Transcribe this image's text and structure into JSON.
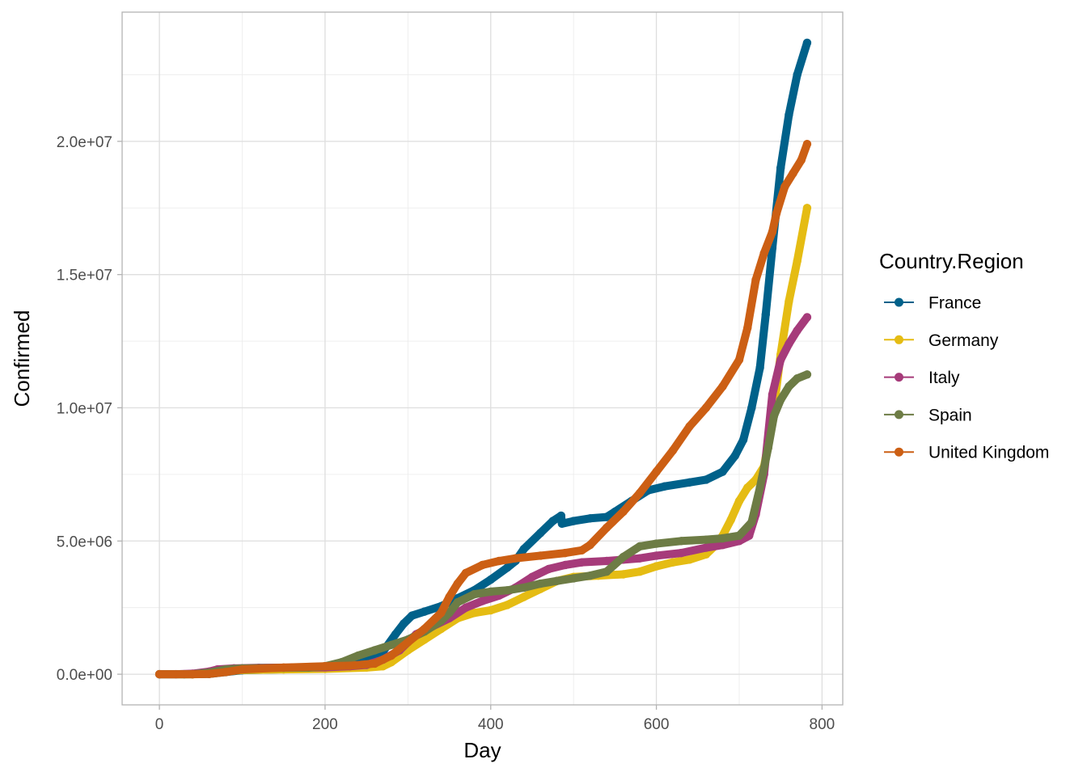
{
  "chart_data": {
    "type": "line",
    "xlabel": "Day",
    "ylabel": "Confirmed",
    "xlim": [
      -45,
      825
    ],
    "ylim": [
      -1150000,
      24850000
    ],
    "x_ticks": [
      0,
      200,
      400,
      600,
      800
    ],
    "x_tick_labels": [
      "0",
      "200",
      "400",
      "600",
      "800"
    ],
    "y_ticks": [
      0,
      5000000,
      10000000,
      15000000,
      20000000
    ],
    "y_tick_labels": [
      "0.0e+00",
      "5.0e+06",
      "1.0e+07",
      "1.5e+07",
      "2.0e+07"
    ],
    "grid": true,
    "legend_title": "Country.Region",
    "legend_position": "right",
    "series": [
      {
        "name": "France",
        "color": "#00618A",
        "points": [
          [
            0,
            0
          ],
          [
            30,
            0
          ],
          [
            60,
            10000
          ],
          [
            80,
            80000
          ],
          [
            100,
            150000
          ],
          [
            150,
            190000
          ],
          [
            200,
            250000
          ],
          [
            230,
            330000
          ],
          [
            250,
            500000
          ],
          [
            270,
            850000
          ],
          [
            285,
            1500000
          ],
          [
            295,
            1900000
          ],
          [
            305,
            2200000
          ],
          [
            320,
            2350000
          ],
          [
            340,
            2550000
          ],
          [
            360,
            2850000
          ],
          [
            380,
            3150000
          ],
          [
            400,
            3550000
          ],
          [
            420,
            4000000
          ],
          [
            430,
            4250000
          ],
          [
            440,
            4700000
          ],
          [
            460,
            5300000
          ],
          [
            475,
            5750000
          ],
          [
            485,
            5950000
          ],
          [
            486,
            5650000
          ],
          [
            500,
            5750000
          ],
          [
            520,
            5850000
          ],
          [
            540,
            5900000
          ],
          [
            550,
            6100000
          ],
          [
            570,
            6500000
          ],
          [
            590,
            6900000
          ],
          [
            610,
            7050000
          ],
          [
            640,
            7200000
          ],
          [
            660,
            7300000
          ],
          [
            680,
            7600000
          ],
          [
            695,
            8200000
          ],
          [
            705,
            8800000
          ],
          [
            715,
            10000000
          ],
          [
            725,
            11500000
          ],
          [
            732,
            13500000
          ],
          [
            740,
            16000000
          ],
          [
            750,
            19000000
          ],
          [
            760,
            21000000
          ],
          [
            770,
            22500000
          ],
          [
            782,
            23700000
          ]
        ]
      },
      {
        "name": "Germany",
        "color": "#E5BC13",
        "points": [
          [
            0,
            0
          ],
          [
            40,
            0
          ],
          [
            60,
            30000
          ],
          [
            80,
            100000
          ],
          [
            100,
            160000
          ],
          [
            150,
            180000
          ],
          [
            200,
            200000
          ],
          [
            250,
            250000
          ],
          [
            270,
            300000
          ],
          [
            280,
            450000
          ],
          [
            300,
            900000
          ],
          [
            320,
            1300000
          ],
          [
            340,
            1700000
          ],
          [
            360,
            2100000
          ],
          [
            380,
            2300000
          ],
          [
            400,
            2400000
          ],
          [
            420,
            2600000
          ],
          [
            440,
            2900000
          ],
          [
            460,
            3200000
          ],
          [
            480,
            3500000
          ],
          [
            500,
            3650000
          ],
          [
            530,
            3700000
          ],
          [
            560,
            3750000
          ],
          [
            580,
            3850000
          ],
          [
            600,
            4050000
          ],
          [
            620,
            4200000
          ],
          [
            640,
            4300000
          ],
          [
            660,
            4500000
          ],
          [
            670,
            4800000
          ],
          [
            680,
            5200000
          ],
          [
            690,
            5800000
          ],
          [
            700,
            6500000
          ],
          [
            710,
            7000000
          ],
          [
            720,
            7300000
          ],
          [
            730,
            7800000
          ],
          [
            740,
            9500000
          ],
          [
            750,
            12000000
          ],
          [
            760,
            14000000
          ],
          [
            770,
            15500000
          ],
          [
            782,
            17500000
          ]
        ]
      },
      {
        "name": "Italy",
        "color": "#A63B7A",
        "points": [
          [
            0,
            0
          ],
          [
            20,
            0
          ],
          [
            40,
            20000
          ],
          [
            60,
            100000
          ],
          [
            70,
            180000
          ],
          [
            90,
            220000
          ],
          [
            120,
            240000
          ],
          [
            160,
            250000
          ],
          [
            200,
            260000
          ],
          [
            230,
            300000
          ],
          [
            250,
            350000
          ],
          [
            270,
            550000
          ],
          [
            290,
            900000
          ],
          [
            310,
            1500000
          ],
          [
            330,
            1800000
          ],
          [
            350,
            2100000
          ],
          [
            370,
            2500000
          ],
          [
            390,
            2750000
          ],
          [
            410,
            2950000
          ],
          [
            430,
            3250000
          ],
          [
            450,
            3650000
          ],
          [
            470,
            3950000
          ],
          [
            490,
            4100000
          ],
          [
            510,
            4200000
          ],
          [
            540,
            4250000
          ],
          [
            560,
            4300000
          ],
          [
            580,
            4350000
          ],
          [
            600,
            4450000
          ],
          [
            630,
            4550000
          ],
          [
            660,
            4750000
          ],
          [
            680,
            4850000
          ],
          [
            700,
            5000000
          ],
          [
            712,
            5200000
          ],
          [
            720,
            6000000
          ],
          [
            730,
            7500000
          ],
          [
            740,
            10500000
          ],
          [
            750,
            11800000
          ],
          [
            760,
            12400000
          ],
          [
            770,
            12900000
          ],
          [
            782,
            13400000
          ]
        ]
      },
      {
        "name": "Spain",
        "color": "#6D7C45",
        "points": [
          [
            0,
            0
          ],
          [
            40,
            0
          ],
          [
            60,
            60000
          ],
          [
            80,
            180000
          ],
          [
            100,
            220000
          ],
          [
            150,
            240000
          ],
          [
            180,
            250000
          ],
          [
            200,
            300000
          ],
          [
            220,
            450000
          ],
          [
            240,
            700000
          ],
          [
            260,
            900000
          ],
          [
            280,
            1100000
          ],
          [
            300,
            1300000
          ],
          [
            320,
            1600000
          ],
          [
            340,
            2000000
          ],
          [
            350,
            2300000
          ],
          [
            360,
            2700000
          ],
          [
            380,
            3000000
          ],
          [
            400,
            3100000
          ],
          [
            420,
            3150000
          ],
          [
            440,
            3250000
          ],
          [
            460,
            3400000
          ],
          [
            480,
            3500000
          ],
          [
            500,
            3600000
          ],
          [
            520,
            3700000
          ],
          [
            540,
            3850000
          ],
          [
            560,
            4400000
          ],
          [
            580,
            4800000
          ],
          [
            600,
            4900000
          ],
          [
            630,
            5000000
          ],
          [
            660,
            5050000
          ],
          [
            680,
            5100000
          ],
          [
            700,
            5200000
          ],
          [
            715,
            5700000
          ],
          [
            725,
            7000000
          ],
          [
            735,
            8500000
          ],
          [
            742,
            9700000
          ],
          [
            750,
            10300000
          ],
          [
            760,
            10800000
          ],
          [
            770,
            11100000
          ],
          [
            782,
            11250000
          ]
        ]
      },
      {
        "name": "United Kingdom",
        "color": "#CC5F14",
        "points": [
          [
            0,
            0
          ],
          [
            40,
            0
          ],
          [
            60,
            10000
          ],
          [
            80,
            80000
          ],
          [
            100,
            180000
          ],
          [
            150,
            250000
          ],
          [
            200,
            300000
          ],
          [
            230,
            320000
          ],
          [
            260,
            400000
          ],
          [
            280,
            700000
          ],
          [
            300,
            1200000
          ],
          [
            320,
            1700000
          ],
          [
            340,
            2300000
          ],
          [
            350,
            2900000
          ],
          [
            360,
            3400000
          ],
          [
            370,
            3800000
          ],
          [
            390,
            4100000
          ],
          [
            410,
            4250000
          ],
          [
            430,
            4350000
          ],
          [
            460,
            4450000
          ],
          [
            490,
            4550000
          ],
          [
            510,
            4650000
          ],
          [
            520,
            4850000
          ],
          [
            540,
            5500000
          ],
          [
            560,
            6100000
          ],
          [
            580,
            6800000
          ],
          [
            600,
            7600000
          ],
          [
            620,
            8400000
          ],
          [
            640,
            9300000
          ],
          [
            660,
            10000000
          ],
          [
            680,
            10800000
          ],
          [
            700,
            11800000
          ],
          [
            710,
            13000000
          ],
          [
            720,
            14800000
          ],
          [
            730,
            15800000
          ],
          [
            740,
            16600000
          ],
          [
            745,
            17300000
          ],
          [
            755,
            18300000
          ],
          [
            765,
            18800000
          ],
          [
            775,
            19300000
          ],
          [
            782,
            19900000
          ]
        ]
      }
    ]
  }
}
